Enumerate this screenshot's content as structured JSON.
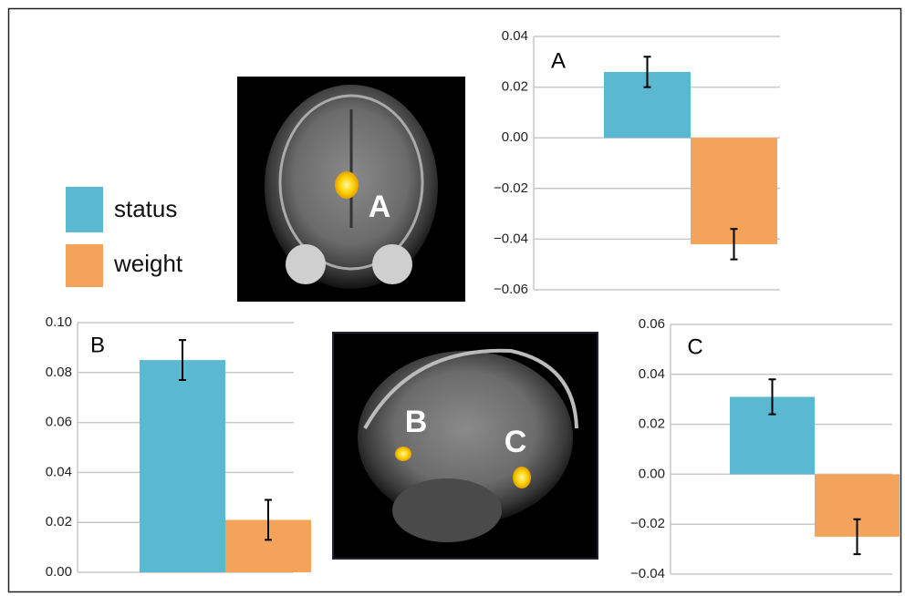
{
  "chart_data": [
    {
      "type": "bar",
      "panel": "A",
      "series": [
        {
          "name": "status",
          "color": "#5ab8d0",
          "values": [
            0.026
          ],
          "errors": [
            0.006
          ]
        },
        {
          "name": "weight",
          "color": "#f4a35a",
          "values": [
            -0.042
          ],
          "errors": [
            0.006
          ]
        }
      ],
      "ylim": [
        -0.06,
        0.04
      ],
      "yticks": [
        {
          "value": -0.06,
          "label": "−0.06"
        },
        {
          "value": -0.04,
          "label": "−0.04"
        },
        {
          "value": -0.02,
          "label": "−0.02"
        },
        {
          "value": 0,
          "label": "0.00"
        },
        {
          "value": 0.02,
          "label": "0.02"
        },
        {
          "value": 0.04,
          "label": "0.04"
        }
      ],
      "grid": true
    },
    {
      "type": "bar",
      "panel": "B",
      "series": [
        {
          "name": "status",
          "color": "#5ab8d0",
          "values": [
            0.085
          ],
          "errors": [
            0.008
          ]
        },
        {
          "name": "weight",
          "color": "#f4a35a",
          "values": [
            0.021
          ],
          "errors": [
            0.008
          ]
        }
      ],
      "ylim": [
        0,
        0.1
      ],
      "yticks": [
        {
          "value": 0,
          "label": "0.00"
        },
        {
          "value": 0.02,
          "label": "0.02"
        },
        {
          "value": 0.04,
          "label": "0.04"
        },
        {
          "value": 0.06,
          "label": "0.06"
        },
        {
          "value": 0.08,
          "label": "0.08"
        },
        {
          "value": 0.1,
          "label": "0.10"
        }
      ],
      "grid": true
    },
    {
      "type": "bar",
      "panel": "C",
      "series": [
        {
          "name": "status",
          "color": "#5ab8d0",
          "values": [
            0.031
          ],
          "errors": [
            0.007
          ]
        },
        {
          "name": "weight",
          "color": "#f4a35a",
          "values": [
            -0.025
          ],
          "errors": [
            0.007
          ]
        }
      ],
      "ylim": [
        -0.04,
        0.06
      ],
      "yticks": [
        {
          "value": -0.04,
          "label": "−0.04"
        },
        {
          "value": -0.02,
          "label": "−0.02"
        },
        {
          "value": 0,
          "label": "0.00"
        },
        {
          "value": 0.02,
          "label": "0.02"
        },
        {
          "value": 0.04,
          "label": "0.04"
        },
        {
          "value": 0.06,
          "label": "0.06"
        }
      ],
      "grid": true
    }
  ],
  "images": [
    {
      "labels": [
        "A"
      ]
    },
    {
      "labels": [
        "B",
        "C"
      ]
    }
  ]
}
